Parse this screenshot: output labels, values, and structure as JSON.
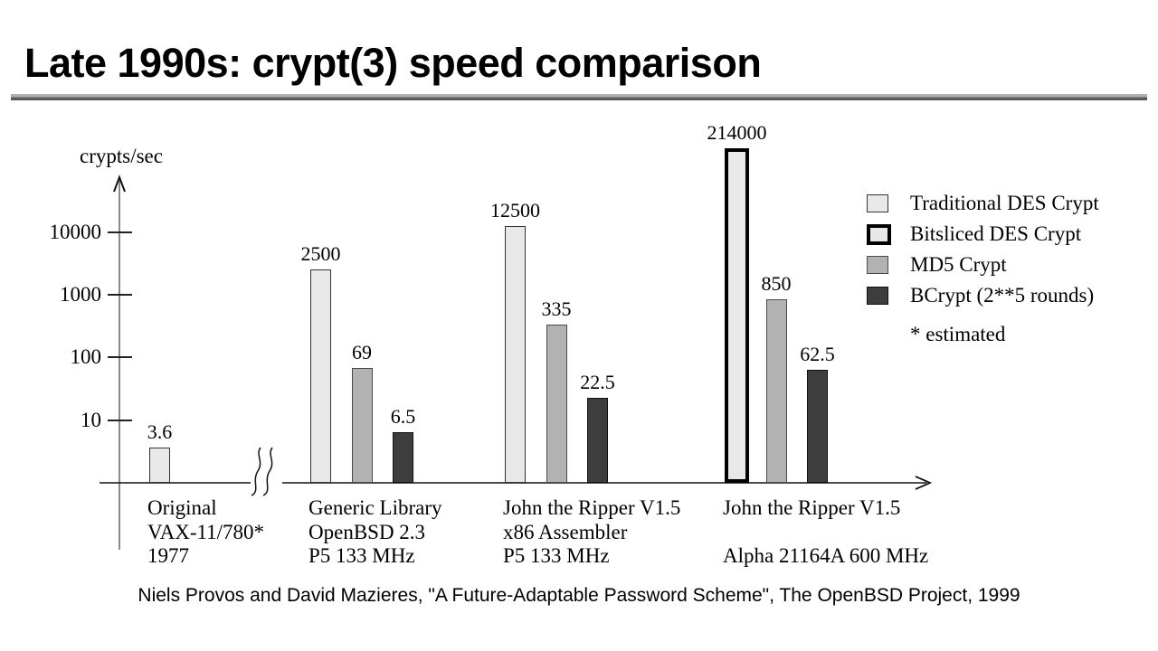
{
  "slide": {
    "title": "Late 1990s: crypt(3) speed comparison",
    "footer": "Niels Provos and David Mazieres, \"A Future-Adaptable Password Scheme\", The OpenBSD Project, 1999"
  },
  "colors": {
    "traditional_fill": "#e8e8e8",
    "bitsliced_fill": "#e8e8e8",
    "bitsliced_border": "#000000",
    "md5_fill": "#b2b2b2",
    "bcrypt_fill": "#3d3d3d",
    "rule_top": "#b0b0b0",
    "rule_bottom": "#5a5a5a",
    "axis_gray": "#8a8a8a"
  },
  "chart_data": {
    "type": "bar",
    "title": "",
    "xlabel": "",
    "ylabel": "crypts/sec",
    "yscale": "log",
    "yticks": [
      10000,
      1000,
      100,
      10
    ],
    "ylim": [
      1,
      300000
    ],
    "grid": false,
    "axis_break_after_group": 0,
    "legend_position": "right",
    "legend": [
      {
        "series": "traditional",
        "label": "Traditional DES Crypt"
      },
      {
        "series": "bitsliced",
        "label": "Bitsliced DES Crypt"
      },
      {
        "series": "md5",
        "label": "MD5 Crypt"
      },
      {
        "series": "bcrypt",
        "label": "BCrypt (2**5 rounds)"
      }
    ],
    "legend_note": "* estimated",
    "groups": [
      {
        "label_lines": [
          "Original",
          "VAX-11/780*",
          "1977"
        ],
        "bars": [
          {
            "series": "traditional",
            "value": 3.6,
            "label": "3.6"
          }
        ]
      },
      {
        "label_lines": [
          "Generic Library",
          "OpenBSD 2.3",
          "P5 133 MHz"
        ],
        "bars": [
          {
            "series": "traditional",
            "value": 2500,
            "label": "2500"
          },
          {
            "series": "md5",
            "value": 69,
            "label": "69"
          },
          {
            "series": "bcrypt",
            "value": 6.5,
            "label": "6.5"
          }
        ]
      },
      {
        "label_lines": [
          "John the Ripper V1.5",
          "x86 Assembler",
          "P5 133 MHz"
        ],
        "bars": [
          {
            "series": "traditional",
            "value": 12500,
            "label": "12500"
          },
          {
            "series": "md5",
            "value": 335,
            "label": "335"
          },
          {
            "series": "bcrypt",
            "value": 22.5,
            "label": "22.5"
          }
        ]
      },
      {
        "label_lines": [
          "John the Ripper V1.5",
          "",
          "Alpha 21164A 600 MHz"
        ],
        "bars": [
          {
            "series": "bitsliced",
            "value": 214000,
            "label": "214000"
          },
          {
            "series": "md5",
            "value": 850,
            "label": "850"
          },
          {
            "series": "bcrypt",
            "value": 62.5,
            "label": "62.5"
          }
        ]
      }
    ]
  }
}
